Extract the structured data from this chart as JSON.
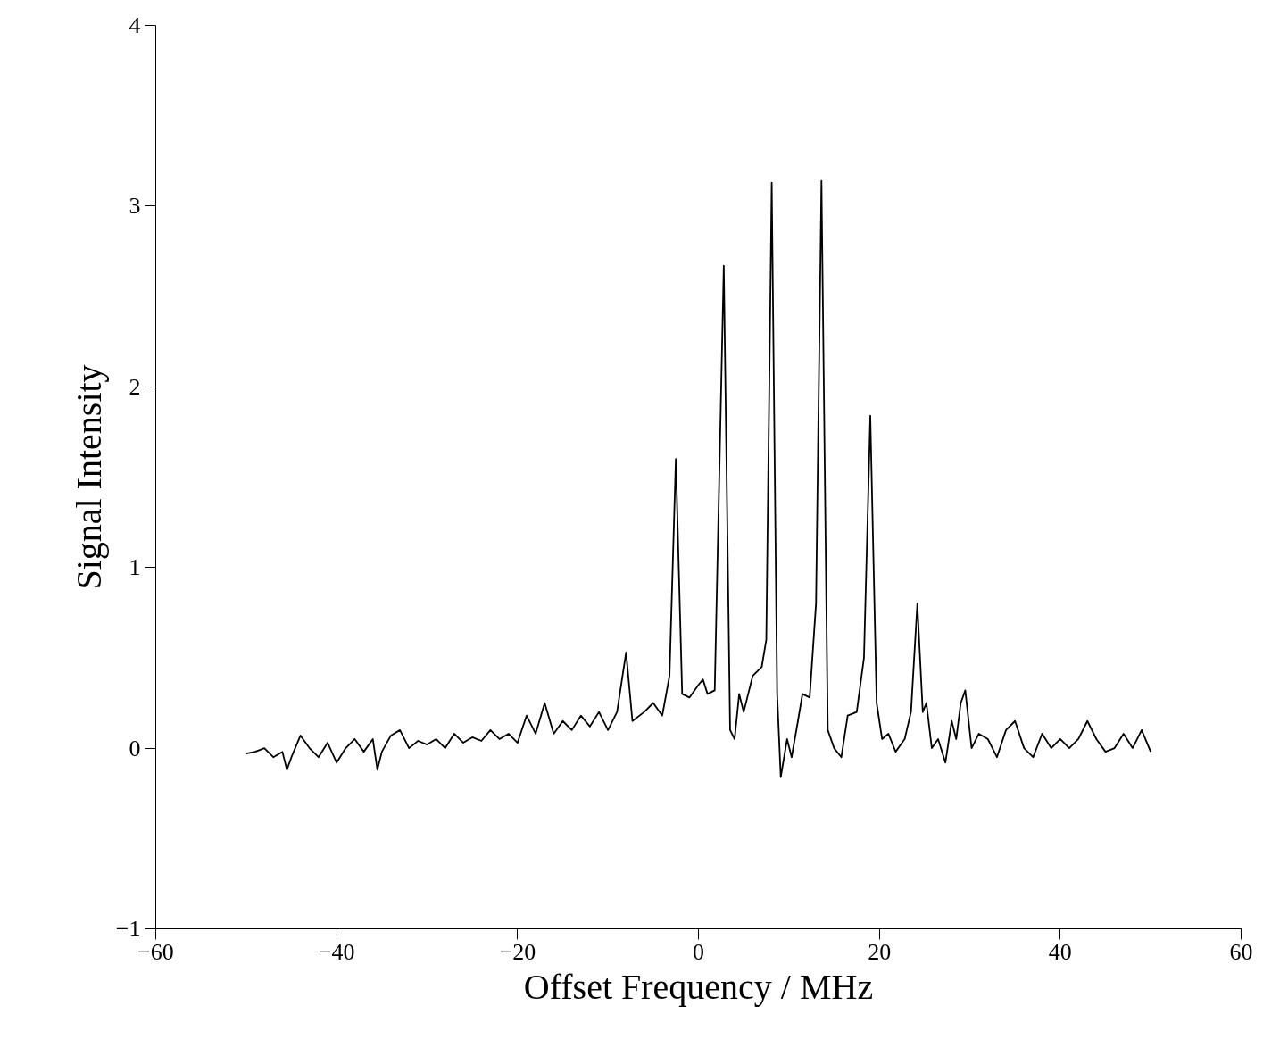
{
  "chart_data": {
    "type": "line",
    "xlabel": "Offset Frequency / MHz",
    "ylabel": "Signal Intensity",
    "xlim": [
      -60,
      60
    ],
    "ylim": [
      -1,
      4
    ],
    "xticks": [
      {
        "value": -60,
        "label": "−60"
      },
      {
        "value": -40,
        "label": "−40"
      },
      {
        "value": -20,
        "label": "−20"
      },
      0,
      20,
      40,
      60
    ],
    "yticks": [
      {
        "value": -1,
        "label": "−1"
      },
      0,
      1,
      2,
      3,
      4
    ],
    "grid": false,
    "marker": "none",
    "line_style": "solid",
    "series": [
      {
        "color": "#000000",
        "x": [
          -50,
          -49,
          -48,
          -47,
          -46,
          -45.5,
          -45,
          -44,
          -43,
          -42,
          -41,
          -40,
          -39,
          -38,
          -37,
          -36,
          -35.5,
          -35,
          -34,
          -33,
          -32,
          -31,
          -30,
          -29,
          -28,
          -27,
          -26,
          -25,
          -24,
          -23,
          -22,
          -21,
          -20,
          -19,
          -18,
          -17,
          -16,
          -15,
          -14,
          -13,
          -12,
          -11,
          -10,
          -9,
          -8,
          -7.3,
          -6,
          -5,
          -4,
          -3.2,
          -2.5,
          -1.8,
          -1,
          0,
          0.5,
          1,
          1.8,
          2.8,
          3.5,
          4,
          4.5,
          5,
          6,
          7,
          7.5,
          8.1,
          8.7,
          9.1,
          9.8,
          10.3,
          11,
          11.5,
          12.3,
          13,
          13.6,
          14.3,
          15,
          15.8,
          16.5,
          17.5,
          18.3,
          19,
          19.7,
          20.3,
          21,
          21.8,
          22.8,
          23.5,
          24.2,
          24.8,
          25.2,
          25.8,
          26.5,
          27.3,
          28,
          28.5,
          29,
          29.5,
          30.2,
          31,
          32,
          33,
          34,
          35,
          36,
          37,
          38,
          39,
          40,
          41,
          42,
          43,
          44,
          45,
          46,
          47,
          48,
          49,
          50
        ],
        "values": [
          -0.03,
          -0.02,
          0.0,
          -0.05,
          -0.02,
          -0.12,
          -0.05,
          0.07,
          0.0,
          -0.05,
          0.03,
          -0.08,
          0.0,
          0.05,
          -0.02,
          0.05,
          -0.12,
          -0.02,
          0.07,
          0.1,
          0.0,
          0.04,
          0.02,
          0.05,
          0.0,
          0.08,
          0.03,
          0.06,
          0.04,
          0.1,
          0.05,
          0.08,
          0.03,
          0.18,
          0.08,
          0.25,
          0.08,
          0.15,
          0.1,
          0.18,
          0.12,
          0.2,
          0.1,
          0.2,
          0.53,
          0.15,
          0.2,
          0.25,
          0.18,
          0.4,
          1.6,
          0.3,
          0.28,
          0.35,
          0.38,
          0.3,
          0.32,
          2.67,
          0.1,
          0.05,
          0.3,
          0.2,
          0.4,
          0.45,
          0.6,
          3.13,
          0.3,
          -0.16,
          0.05,
          -0.05,
          0.15,
          0.3,
          0.28,
          0.8,
          3.14,
          0.1,
          0.0,
          -0.05,
          0.18,
          0.2,
          0.5,
          1.84,
          0.25,
          0.05,
          0.08,
          -0.02,
          0.05,
          0.2,
          0.8,
          0.2,
          0.25,
          0.0,
          0.05,
          -0.08,
          0.15,
          0.05,
          0.25,
          0.32,
          0.0,
          0.08,
          0.05,
          -0.05,
          0.1,
          0.15,
          0.0,
          -0.05,
          0.08,
          0.0,
          0.05,
          0.0,
          0.05,
          0.15,
          0.05,
          -0.02,
          0.0,
          0.08,
          0.0,
          0.1,
          -0.02
        ]
      }
    ]
  }
}
